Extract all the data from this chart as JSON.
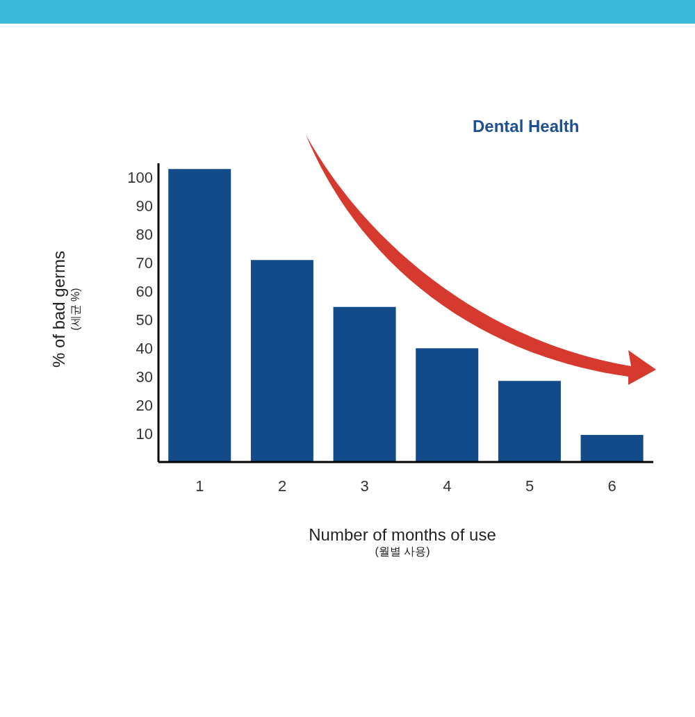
{
  "chart_data": {
    "type": "bar",
    "title": "Dental Health",
    "xlabel": "Number of months of use\n(월별 사용)",
    "ylabel": "% of bad germs\n(세균 %)",
    "categories": [
      "1",
      "2",
      "3",
      "4",
      "5",
      "6"
    ],
    "values": [
      103,
      71,
      54.5,
      40,
      28.5,
      9.5
    ],
    "color": "#134a8a",
    "ylim": [
      0,
      105
    ],
    "yticks": [
      10,
      20,
      30,
      40,
      50,
      60,
      70,
      80,
      90,
      100
    ],
    "grid": false,
    "legend": false
  }
}
